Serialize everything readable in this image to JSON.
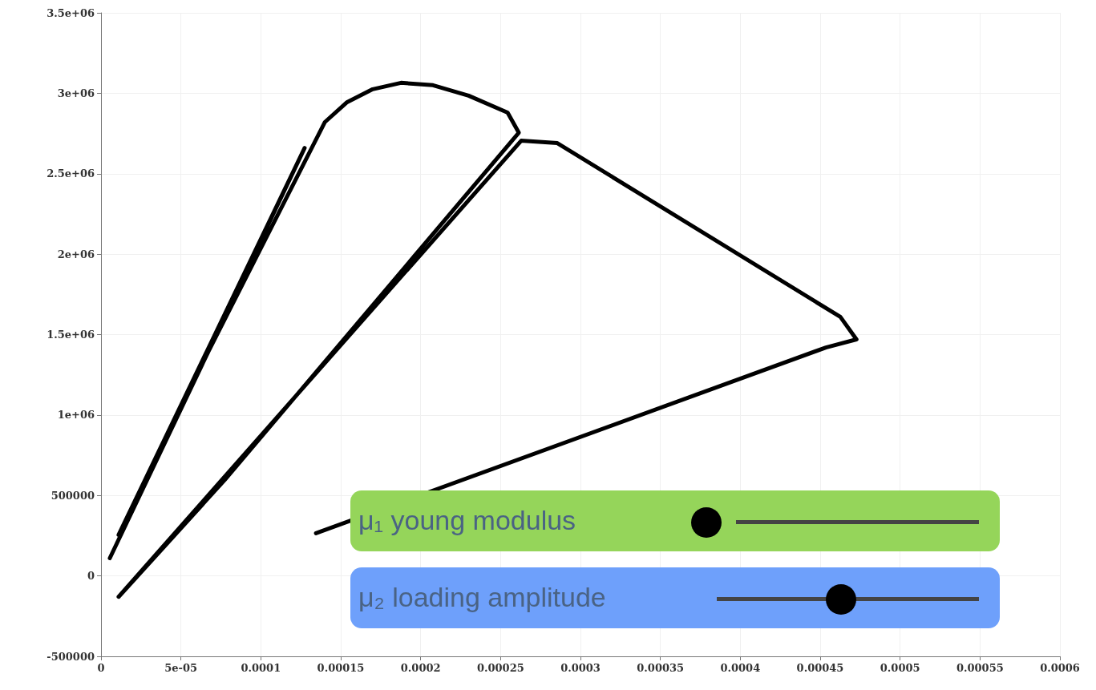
{
  "chart_data": {
    "type": "line",
    "series": [
      {
        "color": "#000000",
        "x": [
          1.1e-05,
          0.0001274,
          5.5e-06,
          6.72e-05,
          0.00014,
          0.000154,
          0.00017,
          0.0001877,
          0.0002077,
          0.00023,
          0.0002544,
          0.0002614,
          7.73e-05,
          1.1e-05,
          0.0002629,
          0.0002855,
          0.0004626,
          0.0004727,
          0.0004536,
          0.0001345
        ],
        "values": [
          255000,
          2660000,
          110000,
          1395000,
          2820000,
          2945000,
          3025000,
          3065000,
          3050000,
          2985000,
          2880000,
          2755000,
          595000,
          -130000,
          2705000,
          2690000,
          1610000,
          1470000,
          1420000,
          265000
        ]
      }
    ],
    "xlim": [
      0,
      0.0006
    ],
    "xticks": [
      0,
      {
        "value": 5e-05,
        "label": "5e-05"
      },
      0.0001,
      0.00015,
      0.0002,
      0.00025,
      0.0003,
      0.00035,
      0.0004,
      0.00045,
      0.0005,
      0.00055,
      0.0006
    ],
    "ylim": [
      -500000,
      3500000
    ],
    "yticks": [
      -500000,
      0,
      500000,
      {
        "value": 1000000,
        "label": "1e+06"
      },
      {
        "value": 1500000,
        "label": "1.5e+06"
      },
      {
        "value": 2000000,
        "label": "2e+06"
      },
      {
        "value": 2500000,
        "label": "2.5e+06"
      },
      {
        "value": 3000000,
        "label": "3e+06"
      },
      {
        "value": 3500000,
        "label": "3.5e+06"
      }
    ],
    "grid": true,
    "marker": "none",
    "line_style": "solid",
    "annotations": [
      "μ₁ young modulus",
      "μ₂ loading amplitude"
    ]
  }
}
